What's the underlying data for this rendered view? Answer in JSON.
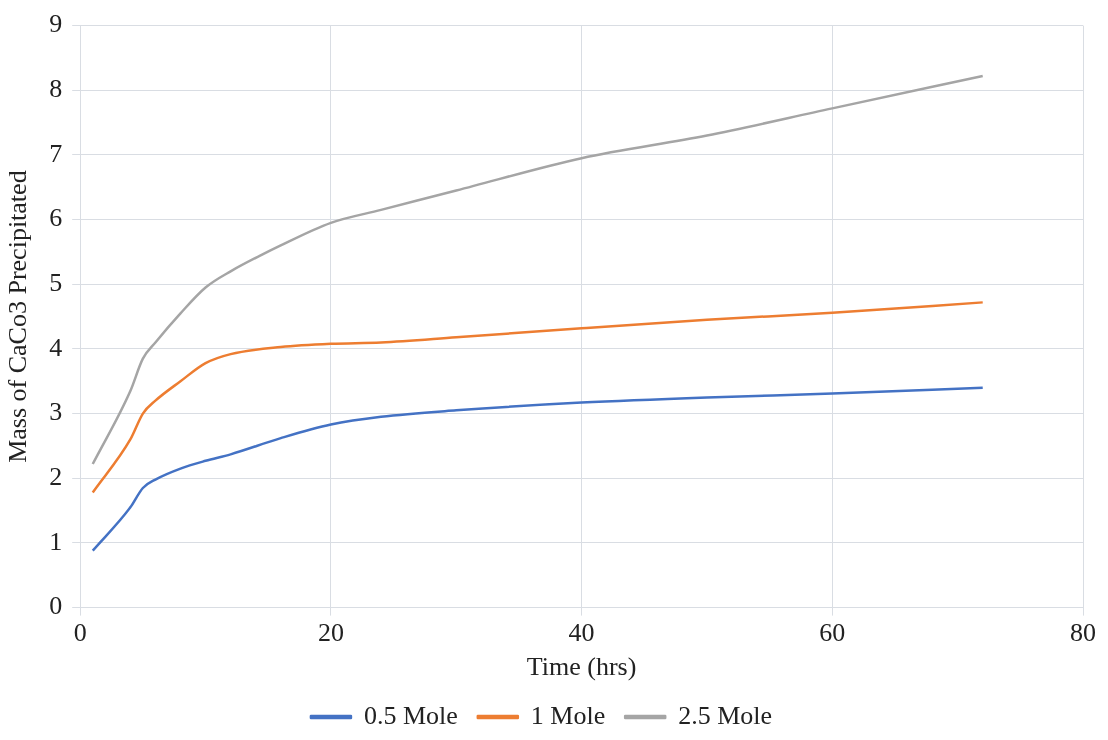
{
  "chart_data": {
    "type": "line",
    "xlabel": "Time (hrs)",
    "ylabel": "Mass of CaCo3 Precipitated",
    "x": [
      1,
      4,
      5,
      6,
      8,
      10,
      12,
      16,
      20,
      24,
      30,
      40,
      50,
      60,
      72
    ],
    "xlim": [
      0,
      80
    ],
    "xticks": [
      0,
      20,
      40,
      60,
      80
    ],
    "ylim": [
      0,
      9
    ],
    "yticks": [
      0,
      1,
      2,
      3,
      4,
      5,
      6,
      7,
      8,
      9
    ],
    "grid": true,
    "legend": "bottom",
    "marker": "none",
    "line_style": "solid",
    "series": [
      {
        "name": "0.5 Mole",
        "color": "#4472c4",
        "values": [
          0.88,
          1.55,
          1.85,
          1.98,
          2.15,
          2.27,
          2.37,
          2.62,
          2.83,
          2.95,
          3.05,
          3.17,
          3.25,
          3.31,
          3.4
        ]
      },
      {
        "name": "1 Mole",
        "color": "#ed7d31",
        "values": [
          1.78,
          2.6,
          3.0,
          3.2,
          3.5,
          3.78,
          3.92,
          4.03,
          4.08,
          4.1,
          4.18,
          4.32,
          4.45,
          4.56,
          4.72
        ]
      },
      {
        "name": "2.5 Mole",
        "color": "#a5a5a5",
        "values": [
          2.22,
          3.35,
          3.85,
          4.1,
          4.55,
          4.95,
          5.2,
          5.6,
          5.95,
          6.15,
          6.45,
          6.95,
          7.3,
          7.72,
          8.22
        ]
      }
    ]
  }
}
